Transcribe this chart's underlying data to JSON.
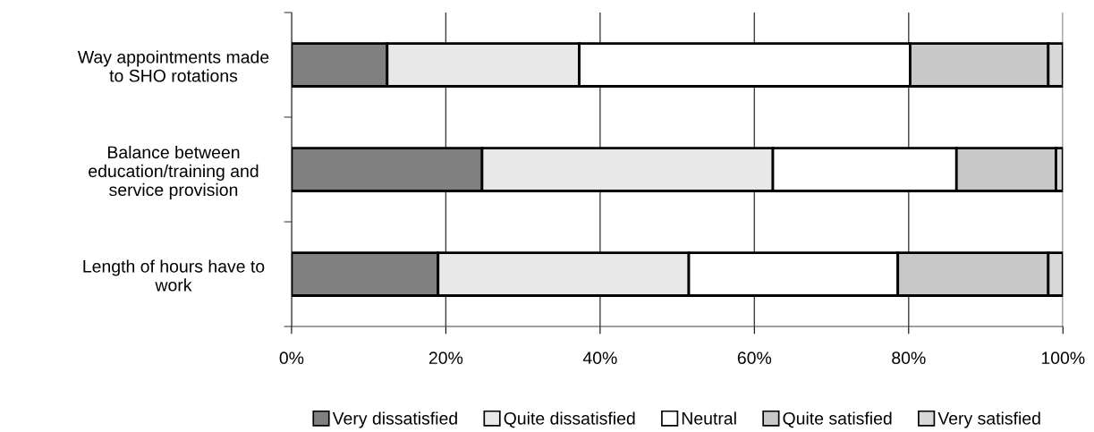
{
  "chart_data": {
    "type": "bar",
    "orientation": "horizontal",
    "stacked": true,
    "categories": [
      "Way appointments made\nto SHO rotations",
      "Balance between\neducation/training and\nservice provision",
      "Length of hours have to\nwork"
    ],
    "series": [
      {
        "name": "Very dissatisfied",
        "color": "#808080",
        "values": [
          12.4,
          24.7,
          19.0
        ]
      },
      {
        "name": "Quite dissatisfied",
        "color": "#e8e8e8",
        "values": [
          24.9,
          37.7,
          32.5
        ]
      },
      {
        "name": "Neutral",
        "color": "#ffffff",
        "values": [
          42.9,
          23.8,
          27.1
        ]
      },
      {
        "name": "Quite satisfied",
        "color": "#c8c8c8",
        "values": [
          17.9,
          12.9,
          19.5
        ]
      },
      {
        "name": "Very satisfied",
        "color": "#d8d8d8",
        "values": [
          1.9,
          0.9,
          1.9
        ]
      }
    ],
    "xlim": [
      0,
      100
    ],
    "xticks": [
      {
        "value": 0,
        "label": "0%"
      },
      {
        "value": 20,
        "label": "20%"
      },
      {
        "value": 40,
        "label": "40%"
      },
      {
        "value": 60,
        "label": "60%"
      },
      {
        "value": 80,
        "label": "80%"
      },
      {
        "value": 100,
        "label": "100%"
      }
    ],
    "grid": "x",
    "legend": "bottom"
  }
}
